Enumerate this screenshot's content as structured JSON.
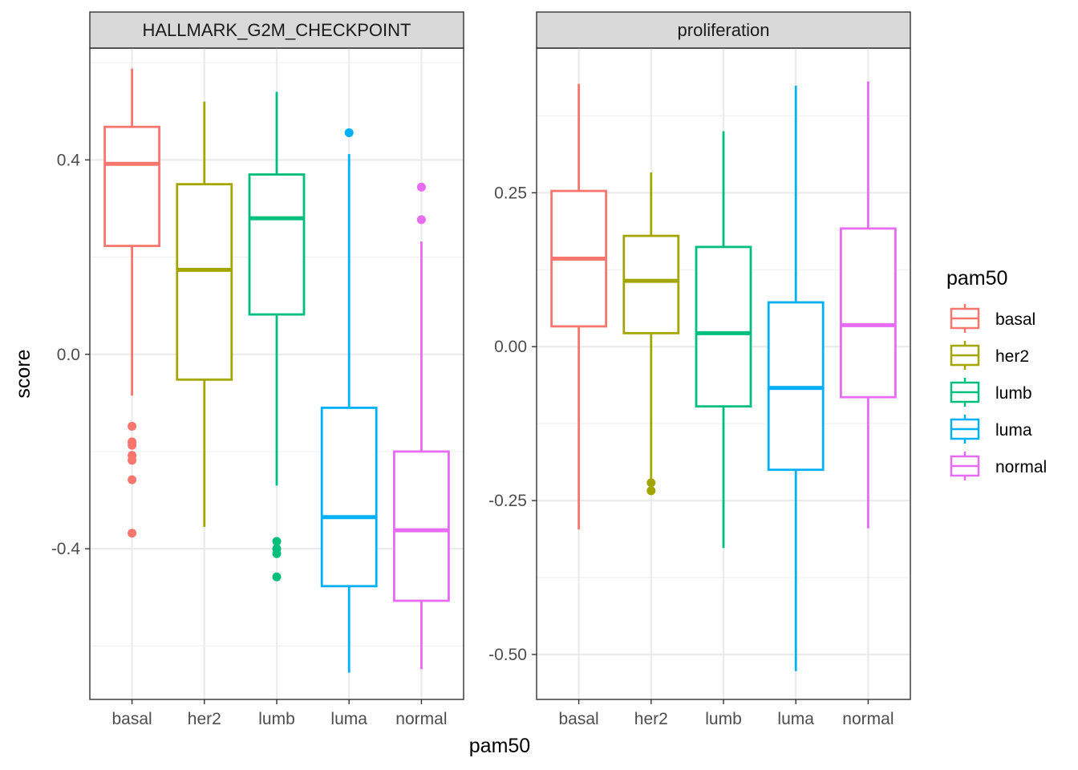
{
  "chart_data": {
    "type": "box",
    "xlabel": "pam50",
    "ylabel": "score",
    "categories": [
      "basal",
      "her2",
      "lumb",
      "luma",
      "normal"
    ],
    "colors": {
      "basal": "#F8766D",
      "her2": "#A3A500",
      "lumb": "#00BF7D",
      "luma": "#00B0F6",
      "normal": "#E76BF3"
    },
    "legend": {
      "title": "pam50",
      "placement": "right",
      "entries": [
        "basal",
        "her2",
        "lumb",
        "luma",
        "normal"
      ]
    },
    "panels": [
      {
        "title": "HALLMARK_G2M_CHECKPOINT",
        "ylim": [
          -0.71,
          0.63
        ],
        "yticks": [
          -0.4,
          0.0,
          0.4
        ],
        "ytick_labels": [
          "-0.4",
          "0.0",
          "0.4"
        ],
        "grid": true,
        "boxes": [
          {
            "category": "basal",
            "whisker_low": -0.085,
            "q1": 0.223,
            "median": 0.392,
            "q3": 0.468,
            "whisker_high": 0.588,
            "outliers": [
              -0.148,
              -0.18,
              -0.187,
              -0.208,
              -0.218,
              -0.258,
              -0.368
            ]
          },
          {
            "category": "her2",
            "whisker_low": -0.355,
            "q1": -0.052,
            "median": 0.174,
            "q3": 0.35,
            "whisker_high": 0.52,
            "outliers": []
          },
          {
            "category": "lumb",
            "whisker_low": -0.27,
            "q1": 0.082,
            "median": 0.28,
            "q3": 0.37,
            "whisker_high": 0.54,
            "outliers": [
              -0.385,
              -0.4,
              -0.41,
              -0.458
            ]
          },
          {
            "category": "luma",
            "whisker_low": -0.655,
            "q1": -0.477,
            "median": -0.335,
            "q3": -0.11,
            "whisker_high": 0.412,
            "outliers": [
              0.456
            ]
          },
          {
            "category": "normal",
            "whisker_low": -0.648,
            "q1": -0.507,
            "median": -0.362,
            "q3": -0.2,
            "whisker_high": 0.232,
            "outliers": [
              0.277,
              0.344
            ]
          }
        ]
      },
      {
        "title": "proliferation",
        "ylim": [
          -0.573,
          0.485
        ],
        "yticks": [
          -0.5,
          -0.25,
          0.0,
          0.25
        ],
        "ytick_labels": [
          "-0.50",
          "-0.25",
          "0.00",
          "0.25"
        ],
        "grid": true,
        "boxes": [
          {
            "category": "basal",
            "whisker_low": -0.297,
            "q1": 0.033,
            "median": 0.143,
            "q3": 0.253,
            "whisker_high": 0.427,
            "outliers": []
          },
          {
            "category": "her2",
            "whisker_low": -0.218,
            "q1": 0.022,
            "median": 0.107,
            "q3": 0.18,
            "whisker_high": 0.283,
            "outliers": [
              -0.221,
              -0.234
            ]
          },
          {
            "category": "lumb",
            "whisker_low": -0.327,
            "q1": -0.097,
            "median": 0.022,
            "q3": 0.162,
            "whisker_high": 0.35,
            "outliers": []
          },
          {
            "category": "luma",
            "whisker_low": -0.527,
            "q1": -0.2,
            "median": -0.067,
            "q3": 0.072,
            "whisker_high": 0.424,
            "outliers": []
          },
          {
            "category": "normal",
            "whisker_low": -0.295,
            "q1": -0.082,
            "median": 0.035,
            "q3": 0.192,
            "whisker_high": 0.431,
            "outliers": []
          }
        ]
      }
    ]
  }
}
